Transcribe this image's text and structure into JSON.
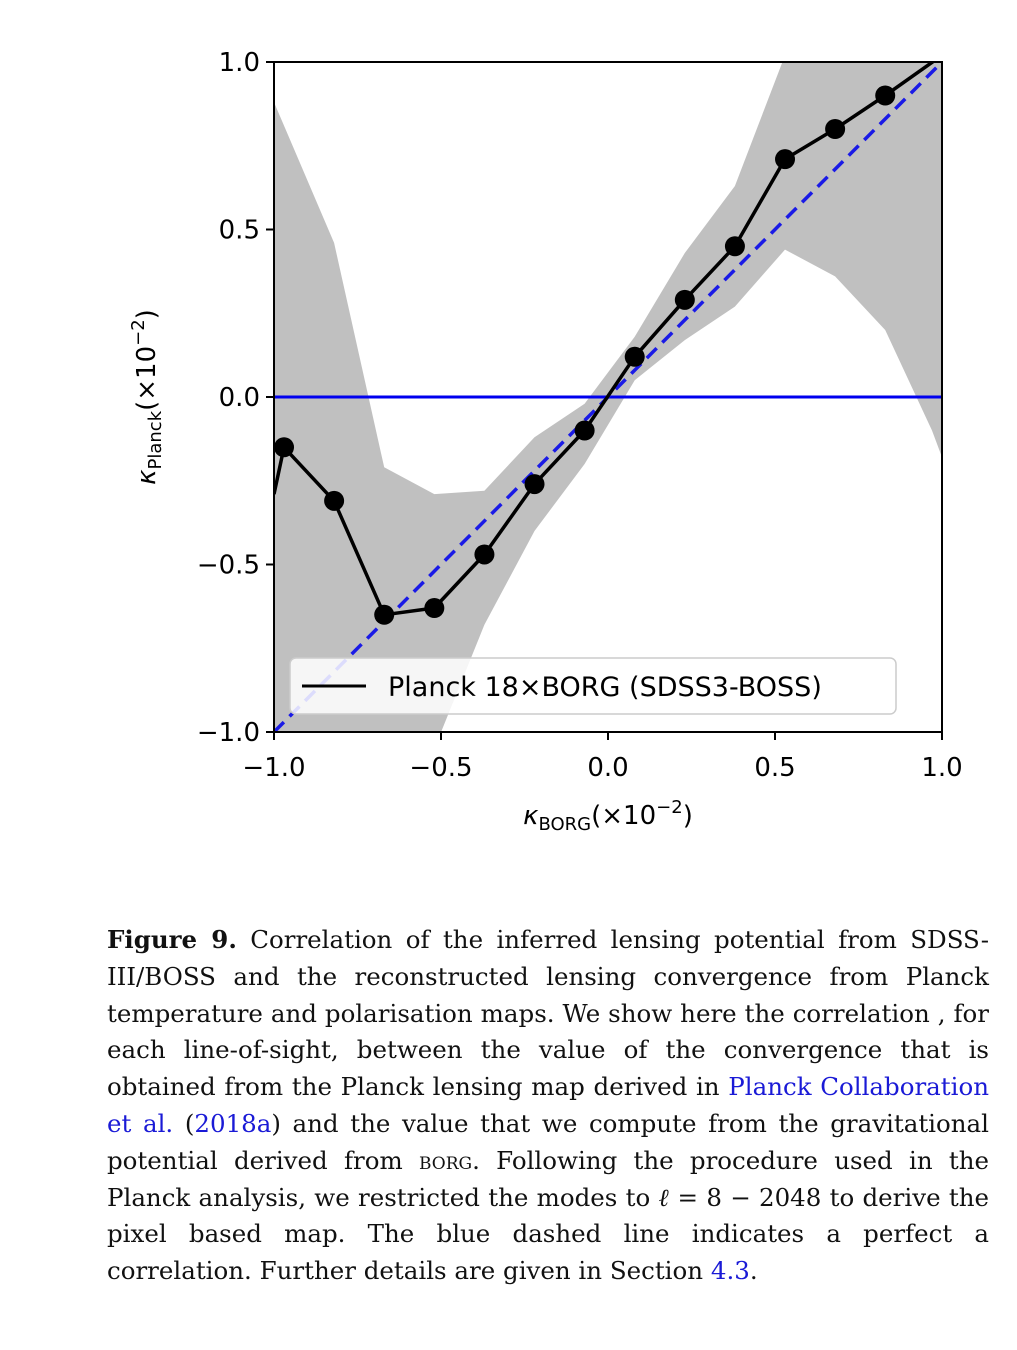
{
  "chart_data": {
    "type": "line",
    "x_axis": {
      "label_symbol": "κ",
      "label_subscript": "BORG",
      "label_suffix": "(×10",
      "label_exponent": "−2",
      "label_close": ")",
      "range": [
        -1.0,
        1.0
      ],
      "ticks": [
        -1.0,
        -0.5,
        0.0,
        0.5,
        1.0
      ],
      "tick_labels": [
        "−1.0",
        "−0.5",
        "0.0",
        "0.5",
        "1.0"
      ]
    },
    "y_axis": {
      "label_symbol": "κ",
      "label_subscript": "Planck",
      "label_suffix": "(×10",
      "label_exponent": "−2",
      "label_close": ")",
      "range": [
        -1.0,
        1.0
      ],
      "ticks": [
        -1.0,
        -0.5,
        0.0,
        0.5,
        1.0
      ],
      "tick_labels": [
        "−1.0",
        "−0.5",
        "0.0",
        "0.5",
        "1.0"
      ]
    },
    "series": [
      {
        "name": "Planck 18×BORG (SDSS3-BOSS)",
        "color": "#000000",
        "marker": "circle",
        "x": [
          -0.97,
          -0.82,
          -0.67,
          -0.52,
          -0.37,
          -0.22,
          -0.07,
          0.08,
          0.23,
          0.38,
          0.53,
          0.68,
          0.83
        ],
        "y": [
          -0.15,
          -0.31,
          -0.65,
          -0.63,
          -0.47,
          -0.26,
          -0.1,
          0.12,
          0.29,
          0.45,
          0.71,
          0.8,
          0.9
        ],
        "line_from": [
          -1.0,
          -0.29
        ],
        "line_to": [
          1.0,
          1.02
        ]
      }
    ],
    "band": {
      "color": "#c0c0c0",
      "x": [
        -1.0,
        -0.82,
        -0.67,
        -0.52,
        -0.37,
        -0.22,
        -0.07,
        0.08,
        0.23,
        0.38,
        0.53,
        0.68,
        0.83,
        0.97,
        1.0
      ],
      "upper": [
        0.88,
        0.46,
        -0.21,
        -0.29,
        -0.28,
        -0.12,
        -0.02,
        0.18,
        0.43,
        0.63,
        1.02,
        1.05,
        1.05,
        1.05,
        1.05
      ],
      "lower": [
        -1.05,
        -1.05,
        -1.05,
        -1.05,
        -0.68,
        -0.4,
        -0.2,
        0.05,
        0.17,
        0.27,
        0.44,
        0.36,
        0.2,
        -0.1,
        -0.18
      ]
    },
    "reference_lines": [
      {
        "kind": "horizontal",
        "y": 0.0,
        "color": "#0000ee",
        "style": "solid"
      },
      {
        "kind": "diagonal",
        "from": [
          -1.0,
          -1.0
        ],
        "to": [
          1.0,
          1.0
        ],
        "color": "#1a1ae6",
        "style": "dashed"
      }
    ],
    "legend": {
      "placement": "bottom-right"
    },
    "grid": false
  },
  "caption": {
    "label": "Figure 9.",
    "text_1": "Correlation of the inferred lensing potential from SDSS-III/BOSS and the reconstructed lensing convergence from Planck temperature and polarisation maps. We show here the correlation , for each line-of-sight, between the value of the convergence that is obtained from the Planck lensing map derived in",
    "ref_author": "Planck Collaboration et al.",
    "ref_open": " (",
    "ref_year": "2018a",
    "text_2": ") and the value that we compute from the gravitational potential derived from",
    "borg": "borg",
    "text_3": ". Following the procedure used in the Planck analysis, we restricted the modes to",
    "ell": "ℓ",
    "text_4": "= 8 − 2048 to derive the pixel based map. The blue dashed line indicates a perfect a correlation. Further details are given in Section",
    "section_ref": "4.3",
    "text_5": "."
  }
}
